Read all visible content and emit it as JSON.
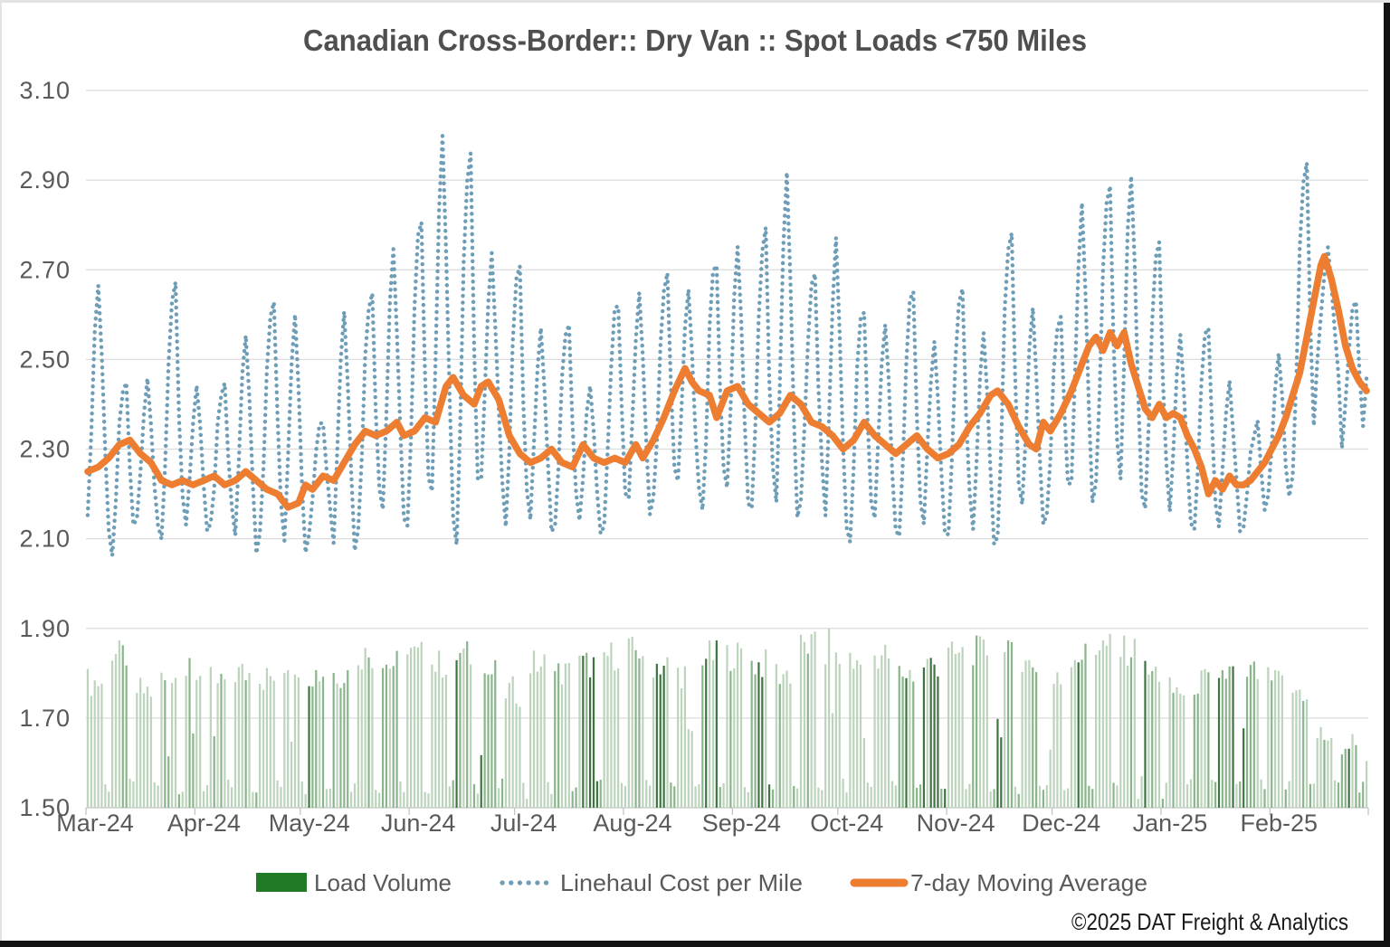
{
  "title": "Canadian Cross-Border:: Dry Van :: Spot Loads <750 Miles",
  "copyright": "©2025 DAT Freight & Analytics",
  "legend": [
    {
      "label": "Load Volume",
      "type": "bar-swatch",
      "color": "#217a24"
    },
    {
      "label": "Linehaul Cost per Mile",
      "type": "dotted-line-swatch",
      "color": "#6e9db8"
    },
    {
      "label": "7-day Moving Average",
      "type": "solid-line-swatch",
      "color": "#ed7d31"
    }
  ],
  "colors": {
    "background": "#ffffff",
    "title": "#4f4f4f",
    "axis_text": "#595959",
    "gridline": "#dcdcdc",
    "axis_line": "#c4c4c4",
    "linehaul": "#6e9db8",
    "moving_average": "#ed7d31",
    "bar_light": "#bcd3bc",
    "bar_medium": "#8ab48b",
    "bar_dark": "#3c7540",
    "legend_green": "#217a24",
    "copyright": "#1a1a1a",
    "edge_dark": "#131313",
    "edge_light": "#e3e3e3"
  },
  "chart_data": {
    "type": "combo",
    "title": "Canadian Cross-Border:: Dry Van :: Spot Loads <750 Miles",
    "grid": true,
    "legend_position": "bottom",
    "y_axis": {
      "min": 1.5,
      "max": 3.1,
      "tick_step": 0.2,
      "tick_labels": [
        "3.10",
        "2.90",
        "2.70",
        "2.50",
        "2.30",
        "2.10",
        "1.90",
        "1.70",
        "1.50"
      ]
    },
    "x_axis": {
      "unit": "day",
      "total_days": 365,
      "months": [
        {
          "label": "Mar-24",
          "days": 31
        },
        {
          "label": "Apr-24",
          "days": 30
        },
        {
          "label": "May-24",
          "days": 31
        },
        {
          "label": "Jun-24",
          "days": 30
        },
        {
          "label": "Jul-24",
          "days": 31
        },
        {
          "label": "Aug-24",
          "days": 31
        },
        {
          "label": "Sep-24",
          "days": 30
        },
        {
          "label": "Oct-24",
          "days": 31
        },
        {
          "label": "Nov-24",
          "days": 30
        },
        {
          "label": "Dec-24",
          "days": 31
        },
        {
          "label": "Jan-25",
          "days": 31
        },
        {
          "label": "Feb-25",
          "days": 28
        }
      ]
    },
    "series": [
      {
        "name": "Linehaul Cost per Mile",
        "type": "dotted-line",
        "weekly_peak_trough": [
          [
            2.66,
            2.13
          ],
          [
            2.46,
            2.07
          ],
          [
            2.45,
            2.12
          ],
          [
            2.66,
            2.1
          ],
          [
            2.44,
            2.11
          ],
          [
            2.45,
            2.13
          ],
          [
            2.56,
            2.08
          ],
          [
            2.62,
            2.11
          ],
          [
            2.61,
            2.06
          ],
          [
            2.36,
            2.12
          ],
          [
            2.62,
            2.07
          ],
          [
            2.65,
            2.12
          ],
          [
            2.75,
            2.14
          ],
          [
            2.8,
            2.12
          ],
          [
            2.99,
            2.16
          ],
          [
            2.95,
            2.1
          ],
          [
            2.73,
            2.22
          ],
          [
            2.7,
            2.12
          ],
          [
            2.56,
            2.13
          ],
          [
            2.57,
            2.14
          ],
          [
            2.45,
            2.11
          ],
          [
            2.63,
            2.14
          ],
          [
            2.66,
            2.15
          ],
          [
            2.68,
            2.18
          ],
          [
            2.67,
            2.2
          ],
          [
            2.72,
            2.16
          ],
          [
            2.75,
            2.18
          ],
          [
            2.78,
            2.16
          ],
          [
            2.91,
            2.14
          ],
          [
            2.69,
            2.18
          ],
          [
            2.76,
            2.12
          ],
          [
            2.62,
            2.1
          ],
          [
            2.58,
            2.12
          ],
          [
            2.65,
            2.1
          ],
          [
            2.55,
            2.12
          ],
          [
            2.66,
            2.12
          ],
          [
            2.55,
            2.1
          ],
          [
            2.78,
            2.12
          ],
          [
            2.62,
            2.14
          ],
          [
            2.6,
            2.16
          ],
          [
            2.85,
            2.18
          ],
          [
            2.88,
            2.22
          ],
          [
            2.92,
            2.2
          ],
          [
            2.75,
            2.18
          ],
          [
            2.55,
            2.14
          ],
          [
            2.57,
            2.12
          ],
          [
            2.45,
            2.12
          ],
          [
            2.35,
            2.14
          ],
          [
            2.5,
            2.18
          ],
          [
            2.94,
            2.24
          ],
          [
            2.75,
            2.48
          ],
          [
            2.62,
            2.3
          ],
          [
            2.62,
            2.45
          ]
        ],
        "week_shapes": [
          [
            0.05,
            0.4,
            0.8,
            1.0,
            0.7,
            0.3,
            0.0
          ],
          [
            0.0,
            0.3,
            0.72,
            0.95,
            1.0,
            0.5,
            0.15
          ]
        ]
      },
      {
        "name": "7-day Moving Average",
        "type": "line",
        "anchors": [
          [
            0,
            2.25
          ],
          [
            3,
            2.26
          ],
          [
            6,
            2.28
          ],
          [
            9,
            2.31
          ],
          [
            12,
            2.32
          ],
          [
            15,
            2.29
          ],
          [
            18,
            2.27
          ],
          [
            21,
            2.23
          ],
          [
            24,
            2.22
          ],
          [
            27,
            2.23
          ],
          [
            30,
            2.22
          ],
          [
            33,
            2.23
          ],
          [
            36,
            2.24
          ],
          [
            39,
            2.22
          ],
          [
            42,
            2.23
          ],
          [
            45,
            2.25
          ],
          [
            48,
            2.23
          ],
          [
            51,
            2.21
          ],
          [
            54,
            2.2
          ],
          [
            57,
            2.17
          ],
          [
            60,
            2.18
          ],
          [
            62,
            2.22
          ],
          [
            64,
            2.21
          ],
          [
            67,
            2.24
          ],
          [
            70,
            2.23
          ],
          [
            73,
            2.27
          ],
          [
            76,
            2.31
          ],
          [
            79,
            2.34
          ],
          [
            82,
            2.33
          ],
          [
            85,
            2.34
          ],
          [
            88,
            2.36
          ],
          [
            90,
            2.33
          ],
          [
            93,
            2.34
          ],
          [
            96,
            2.37
          ],
          [
            99,
            2.36
          ],
          [
            102,
            2.44
          ],
          [
            104,
            2.46
          ],
          [
            107,
            2.42
          ],
          [
            110,
            2.4
          ],
          [
            112,
            2.44
          ],
          [
            114,
            2.45
          ],
          [
            117,
            2.41
          ],
          [
            120,
            2.33
          ],
          [
            123,
            2.29
          ],
          [
            126,
            2.27
          ],
          [
            129,
            2.28
          ],
          [
            132,
            2.3
          ],
          [
            135,
            2.27
          ],
          [
            138,
            2.26
          ],
          [
            141,
            2.31
          ],
          [
            144,
            2.28
          ],
          [
            147,
            2.27
          ],
          [
            150,
            2.28
          ],
          [
            153,
            2.27
          ],
          [
            156,
            2.31
          ],
          [
            158,
            2.28
          ],
          [
            161,
            2.32
          ],
          [
            164,
            2.37
          ],
          [
            167,
            2.43
          ],
          [
            170,
            2.48
          ],
          [
            172,
            2.45
          ],
          [
            174,
            2.43
          ],
          [
            177,
            2.42
          ],
          [
            179,
            2.37
          ],
          [
            182,
            2.43
          ],
          [
            185,
            2.44
          ],
          [
            188,
            2.4
          ],
          [
            191,
            2.38
          ],
          [
            194,
            2.36
          ],
          [
            197,
            2.38
          ],
          [
            200,
            2.42
          ],
          [
            203,
            2.4
          ],
          [
            206,
            2.36
          ],
          [
            209,
            2.35
          ],
          [
            212,
            2.33
          ],
          [
            215,
            2.3
          ],
          [
            218,
            2.32
          ],
          [
            221,
            2.36
          ],
          [
            224,
            2.33
          ],
          [
            227,
            2.31
          ],
          [
            230,
            2.29
          ],
          [
            233,
            2.31
          ],
          [
            236,
            2.33
          ],
          [
            239,
            2.3
          ],
          [
            242,
            2.28
          ],
          [
            245,
            2.29
          ],
          [
            248,
            2.31
          ],
          [
            251,
            2.35
          ],
          [
            254,
            2.38
          ],
          [
            257,
            2.42
          ],
          [
            259,
            2.43
          ],
          [
            262,
            2.4
          ],
          [
            265,
            2.35
          ],
          [
            268,
            2.31
          ],
          [
            270,
            2.3
          ],
          [
            272,
            2.36
          ],
          [
            274,
            2.34
          ],
          [
            277,
            2.38
          ],
          [
            280,
            2.43
          ],
          [
            283,
            2.49
          ],
          [
            285,
            2.53
          ],
          [
            287,
            2.55
          ],
          [
            289,
            2.52
          ],
          [
            291,
            2.56
          ],
          [
            293,
            2.53
          ],
          [
            295,
            2.56
          ],
          [
            297,
            2.49
          ],
          [
            299,
            2.44
          ],
          [
            301,
            2.39
          ],
          [
            303,
            2.37
          ],
          [
            305,
            2.4
          ],
          [
            307,
            2.37
          ],
          [
            309,
            2.38
          ],
          [
            311,
            2.37
          ],
          [
            313,
            2.33
          ],
          [
            315,
            2.3
          ],
          [
            317,
            2.26
          ],
          [
            319,
            2.2
          ],
          [
            321,
            2.23
          ],
          [
            323,
            2.21
          ],
          [
            325,
            2.24
          ],
          [
            327,
            2.22
          ],
          [
            329,
            2.22
          ],
          [
            331,
            2.23
          ],
          [
            333,
            2.25
          ],
          [
            335,
            2.27
          ],
          [
            337,
            2.3
          ],
          [
            339,
            2.33
          ],
          [
            341,
            2.37
          ],
          [
            343,
            2.42
          ],
          [
            345,
            2.47
          ],
          [
            347,
            2.55
          ],
          [
            349,
            2.63
          ],
          [
            351,
            2.71
          ],
          [
            352,
            2.73
          ],
          [
            354,
            2.68
          ],
          [
            356,
            2.61
          ],
          [
            358,
            2.53
          ],
          [
            360,
            2.48
          ],
          [
            362,
            2.45
          ],
          [
            364,
            2.43
          ]
        ]
      },
      {
        "name": "Load Volume",
        "type": "bar",
        "weekday_level_by_week": [
          1.78,
          1.84,
          1.76,
          1.79,
          1.8,
          1.78,
          1.8,
          1.79,
          1.82,
          1.8,
          1.8,
          1.84,
          1.82,
          1.84,
          1.82,
          1.84,
          1.8,
          1.76,
          1.82,
          1.8,
          1.82,
          1.84,
          1.85,
          1.82,
          1.8,
          1.84,
          1.84,
          1.82,
          1.8,
          1.86,
          1.84,
          1.82,
          1.84,
          1.8,
          1.82,
          1.84,
          1.85,
          1.84,
          1.82,
          1.78,
          1.84,
          1.86,
          1.85,
          1.8,
          1.76,
          1.78,
          1.8,
          1.8,
          1.78,
          1.76,
          1.66,
          1.64,
          1.63
        ],
        "weekend_level": 1.53,
        "day_overrides": {
          "125": 1.52,
          "211": 1.9,
          "273": 1.55,
          "299": 1.52,
          "300": 1.57,
          "306": 1.52
        }
      }
    ]
  }
}
